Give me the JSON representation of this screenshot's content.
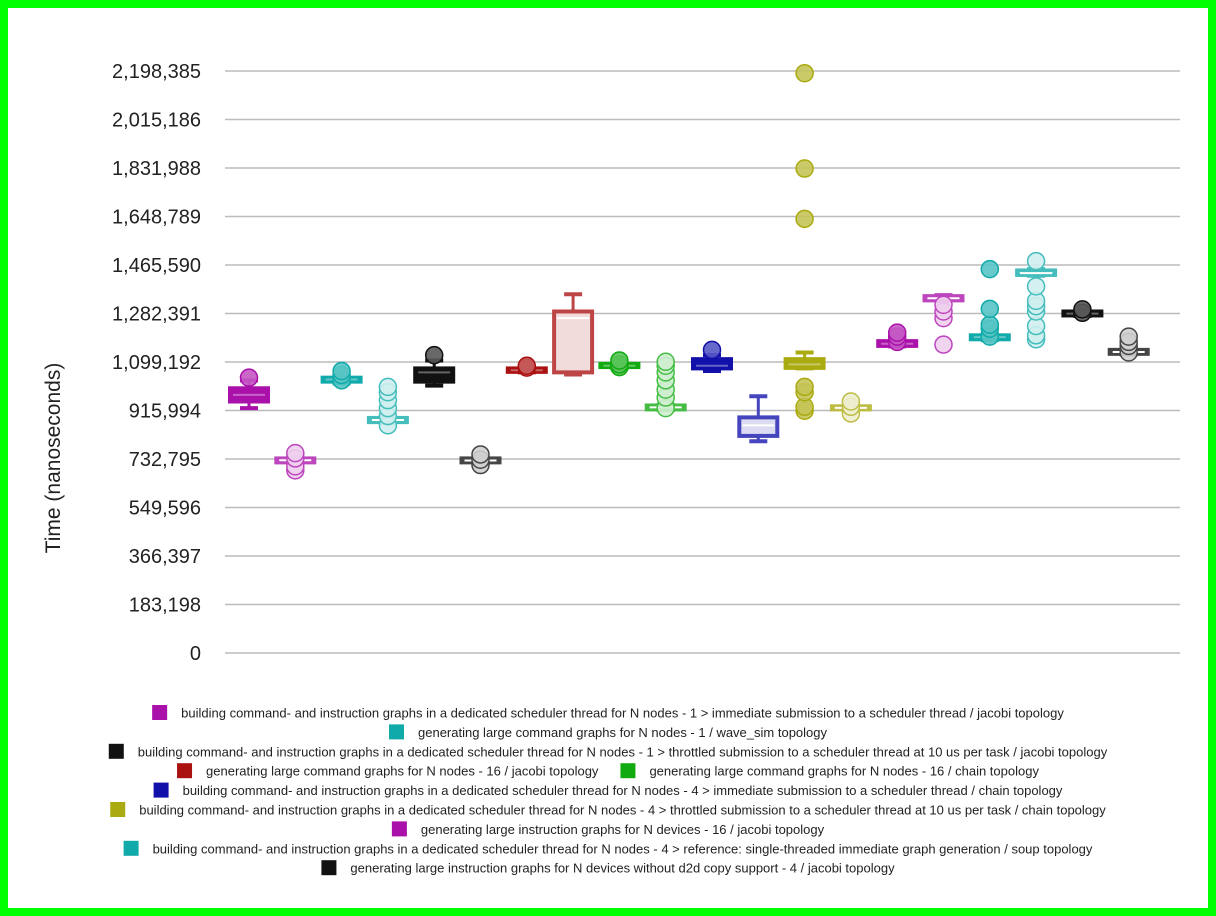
{
  "chart_data": {
    "type": "box",
    "ylabel": "Time (nanoseconds)",
    "ylim": [
      0,
      2198385
    ],
    "yticks": [
      "0",
      "183,198",
      "366,397",
      "549,596",
      "732,795",
      "915,994",
      "1,099,192",
      "1,282,391",
      "1,465,590",
      "1,648,789",
      "1,831,988",
      "2,015,186",
      "2,198,385"
    ],
    "ytick_values": [
      0,
      183198,
      366397,
      549596,
      732795,
      915994,
      1099192,
      1282391,
      1465590,
      1648789,
      1831988,
      2015186,
      2198385
    ],
    "grid": true,
    "legend_position": "bottom",
    "series": [
      {
        "name": "building command- and instruction graphs in a dedicated scheduler thread for N nodes - 1 > immediate submission to a scheduler thread / jacobi topology",
        "color": "#aa11aa",
        "boxes": [
          {
            "whisker_low": 925000,
            "q1": 950000,
            "median": 975000,
            "q3": 1000000,
            "whisker_high": 1030000,
            "outliers": [
              1040000
            ]
          },
          {
            "whisker_low": 718000,
            "q1": 720000,
            "median": 728000,
            "q3": 735000,
            "whisker_high": 740000,
            "outliers": [
              690000,
              705000,
              735000,
              755000
            ]
          }
        ]
      },
      {
        "name": "generating large command graphs for N nodes - 1 / wave_sim topology",
        "color": "#11aaaa",
        "boxes": [
          {
            "whisker_low": 1018000,
            "q1": 1025000,
            "median": 1033000,
            "q3": 1040000,
            "whisker_high": 1045000,
            "outliers": [
              1030000,
              1050000,
              1065000
            ]
          },
          {
            "whisker_low": 868000,
            "q1": 872000,
            "median": 880000,
            "q3": 888000,
            "whisker_high": 892000,
            "outliers": [
              860000,
              895000,
              925000,
              955000,
              985000,
              1005000
            ]
          }
        ]
      },
      {
        "name": "building command- and instruction graphs in a dedicated scheduler thread for N nodes - 1 > throttled submission to a scheduler thread at 10 us per task / jacobi topology",
        "color": "#111111",
        "boxes": [
          {
            "whisker_low": 1010000,
            "q1": 1025000,
            "median": 1060000,
            "q3": 1075000,
            "whisker_high": 1105000,
            "outliers": [
              1125000
            ]
          },
          {
            "whisker_low": 718000,
            "q1": 720000,
            "median": 727000,
            "q3": 735000,
            "whisker_high": 740000,
            "outliers": [
              710000,
              730000,
              750000
            ]
          }
        ]
      },
      {
        "name": "generating large command graphs for N nodes - 16 / jacobi topology",
        "color": "#aa1111",
        "boxes": [
          {
            "whisker_low": 1060000,
            "q1": 1062000,
            "median": 1068000,
            "q3": 1075000,
            "whisker_high": 1080000,
            "outliers": [
              1078000,
              1085000
            ]
          },
          {
            "whisker_low": 1052000,
            "q1": 1060000,
            "median": 1265000,
            "q3": 1290000,
            "whisker_high": 1355000,
            "outliers": []
          }
        ]
      },
      {
        "name": "generating large command graphs for N nodes - 16 / chain topology",
        "color": "#11aa11",
        "boxes": [
          {
            "whisker_low": 1075000,
            "q1": 1080000,
            "median": 1085000,
            "q3": 1092000,
            "whisker_high": 1098000,
            "outliers": [
              1080000,
              1090000,
              1105000
            ]
          },
          {
            "whisker_low": 918000,
            "q1": 920000,
            "median": 928000,
            "q3": 935000,
            "whisker_high": 938000,
            "outliers": [
              925000,
              965000,
              995000,
              1030000,
              1060000,
              1085000,
              1100000
            ]
          }
        ]
      },
      {
        "name": "building command- and instruction graphs in a dedicated scheduler thread for N nodes - 4 > immediate submission to a scheduler thread / chain topology",
        "color": "#1111aa",
        "boxes": [
          {
            "whisker_low": 1065000,
            "q1": 1075000,
            "median": 1085000,
            "q3": 1110000,
            "whisker_high": 1125000,
            "outliers": [
              1145000
            ]
          },
          {
            "whisker_low": 800000,
            "q1": 820000,
            "median": 860000,
            "q3": 890000,
            "whisker_high": 970000,
            "outliers": []
          }
        ]
      },
      {
        "name": "building command- and instruction graphs in a dedicated scheduler thread for N nodes - 4 > throttled submission to a scheduler thread at 10 us per task / chain topology",
        "color": "#aaaa11",
        "boxes": [
          {
            "whisker_low": 1075000,
            "q1": 1077000,
            "median": 1090000,
            "q3": 1110000,
            "whisker_high": 1135000,
            "outliers": [
              915000,
              930000,
              985000,
              1005000,
              1640000,
              1830000,
              2190000
            ]
          },
          {
            "whisker_low": 918000,
            "q1": 920000,
            "median": 926000,
            "q3": 932000,
            "whisker_high": 935000,
            "outliers": [
              905000,
              930000,
              950000
            ]
          }
        ]
      },
      {
        "name": "generating large instruction graphs for N devices - 16 / jacobi topology",
        "color": "#aa11aa",
        "boxes": [
          {
            "whisker_low": 1158000,
            "q1": 1160000,
            "median": 1168000,
            "q3": 1178000,
            "whisker_high": 1182000,
            "outliers": [
              1175000,
              1195000,
              1210000
            ]
          },
          {
            "whisker_low": 1330000,
            "q1": 1332000,
            "median": 1340000,
            "q3": 1348000,
            "whisker_high": 1352000,
            "outliers": [
              1165000,
              1265000,
              1290000,
              1315000
            ]
          }
        ]
      },
      {
        "name": "building command- and instruction graphs in a dedicated scheduler thread for N nodes - 4 > reference: single-threaded immediate graph generation / soup topology",
        "color": "#11aaaa",
        "boxes": [
          {
            "whisker_low": 1182000,
            "q1": 1185000,
            "median": 1193000,
            "q3": 1200000,
            "whisker_high": 1205000,
            "outliers": [
              1195000,
              1225000,
              1240000,
              1300000,
              1450000
            ]
          },
          {
            "whisker_low": 1425000,
            "q1": 1428000,
            "median": 1435000,
            "q3": 1445000,
            "whisker_high": 1450000,
            "outliers": [
              1185000,
              1200000,
              1235000,
              1290000,
              1310000,
              1330000,
              1385000,
              1480000
            ]
          }
        ]
      },
      {
        "name": "generating large instruction graphs for N devices without d2d copy support - 4 / jacobi topology",
        "color": "#111111",
        "boxes": [
          {
            "whisker_low": 1273000,
            "q1": 1275000,
            "median": 1282000,
            "q3": 1290000,
            "whisker_high": 1293000,
            "outliers": [
              1285000,
              1298000
            ]
          },
          {
            "whisker_low": 1128000,
            "q1": 1130000,
            "median": 1137000,
            "q3": 1145000,
            "whisker_high": 1148000,
            "outliers": [
              1135000,
              1160000,
              1175000,
              1195000
            ]
          }
        ]
      }
    ]
  }
}
